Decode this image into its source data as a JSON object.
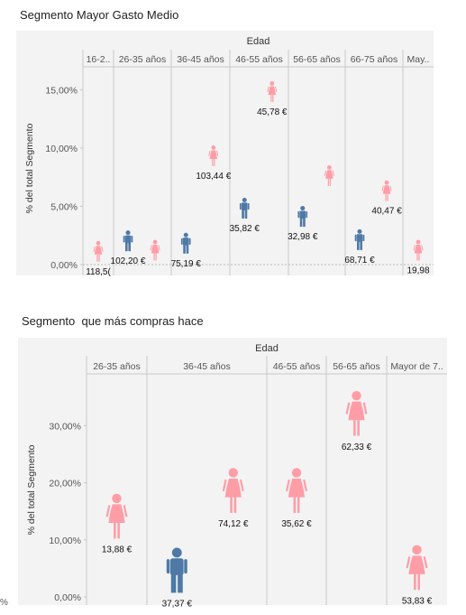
{
  "chart_data": [
    {
      "type": "scatter",
      "title": "Segmento Mayor Gasto Medio",
      "header": "Edad",
      "ylabel": "% del total Segmento",
      "yticks": [
        "0,00%",
        "5,00%",
        "10,00%",
        "15,00%"
      ],
      "ylim": [
        0,
        16.5
      ],
      "grid": false,
      "categories": [
        "16-2..",
        "26-35 años",
        "36-45 años",
        "46-55 años",
        "56-65 años",
        "66-75 años",
        "May.."
      ],
      "points": [
        {
          "category": "16-2..",
          "gender": "female",
          "y": 1.1,
          "label": "118,5("
        },
        {
          "category": "26-35 años",
          "gender": "male",
          "y": 2.0,
          "label": "102,20 €"
        },
        {
          "category": "26-35 años",
          "gender": "female",
          "y": 1.2,
          "label": ""
        },
        {
          "category": "36-45 años",
          "gender": "male",
          "y": 1.8,
          "label": "75,19 €"
        },
        {
          "category": "36-45 años",
          "gender": "female",
          "y": 9.3,
          "label": "103,44 €"
        },
        {
          "category": "46-55 años",
          "gender": "male",
          "y": 4.8,
          "label": "35,82 €"
        },
        {
          "category": "46-55 años",
          "gender": "female",
          "y": 14.8,
          "label": "45,78 €"
        },
        {
          "category": "56-65 años",
          "gender": "male",
          "y": 4.1,
          "label": "32,98 €"
        },
        {
          "category": "56-65 años",
          "gender": "female",
          "y": 7.6,
          "label": ""
        },
        {
          "category": "66-75 años",
          "gender": "male",
          "y": 2.1,
          "label": "68,71 €"
        },
        {
          "category": "66-75 años",
          "gender": "female",
          "y": 6.3,
          "label": "40,47 €"
        },
        {
          "category": "May..",
          "gender": "female",
          "y": 1.2,
          "label": "19,98"
        }
      ]
    },
    {
      "type": "scatter",
      "title": "Segmento  que más compras hace",
      "header": "Edad",
      "ylabel": "% del total Segmento",
      "yticks": [
        "0,00%",
        "10,00%",
        "20,00%",
        "30,00%"
      ],
      "ylim": [
        0,
        37.5
      ],
      "grid": false,
      "categories": [
        "26-35 años",
        "36-45 años",
        "46-55 años",
        "56-65 años",
        "Mayor de 7.."
      ],
      "points": [
        {
          "category": "26-35 años",
          "gender": "female",
          "y": 14.0,
          "label": "13,88 €"
        },
        {
          "category": "36-45 años",
          "gender": "male",
          "y": 4.5,
          "label": "37,37 €"
        },
        {
          "category": "36-45 años",
          "gender": "female",
          "y": 18.5,
          "label": "74,12 €"
        },
        {
          "category": "46-55 años",
          "gender": "female",
          "y": 18.5,
          "label": "35,62 €"
        },
        {
          "category": "56-65 años",
          "gender": "female",
          "y": 32.0,
          "label": "62,33 €"
        },
        {
          "category": "Mayor de 7..",
          "gender": "female",
          "y": 5.0,
          "label": "53,83 €"
        }
      ]
    }
  ],
  "colors": {
    "female": "#ff9da7",
    "male": "#4e79a7",
    "panel": "#f3f3f3"
  },
  "stray_mark": "%"
}
